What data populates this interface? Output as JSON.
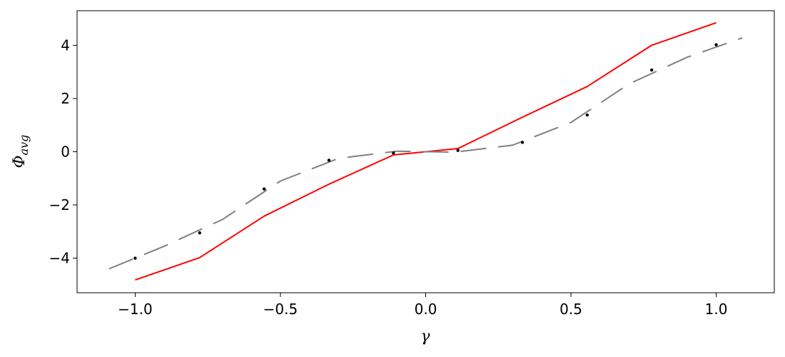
{
  "chart_data": {
    "type": "line",
    "xlabel": "γ",
    "ylabel_main": "Φ",
    "ylabel_sub": "avg",
    "xlim": [
      -1.2,
      1.2
    ],
    "ylim": [
      -5.3,
      5.3
    ],
    "xticks": [
      -1.0,
      -0.5,
      0.0,
      0.5,
      1.0
    ],
    "xtick_labels": [
      "−1.0",
      "−0.5",
      "0.0",
      "0.5",
      "1.0"
    ],
    "yticks": [
      -4,
      -2,
      0,
      2,
      4
    ],
    "ytick_labels": [
      "−4",
      "−2",
      "0",
      "2",
      "4"
    ],
    "grid": false,
    "legend": "none",
    "series": [
      {
        "style": "solid",
        "color": "#ff0000",
        "x": [
          -1.0,
          -0.778,
          -0.556,
          -0.333,
          -0.111,
          0.111,
          0.333,
          0.556,
          0.778,
          1.0
        ],
        "y": [
          -4.82,
          -3.98,
          -2.42,
          -1.22,
          -0.12,
          0.12,
          1.3,
          2.45,
          4.0,
          4.85
        ]
      },
      {
        "style": "dashed",
        "color": "#808080",
        "x": [
          -1.09,
          -0.9,
          -0.7,
          -0.5,
          -0.3,
          -0.1,
          0.1,
          0.3,
          0.5,
          0.7,
          0.9,
          1.09
        ],
        "y": [
          -4.4,
          -3.55,
          -2.55,
          -1.1,
          -0.25,
          0.02,
          -0.02,
          0.25,
          1.1,
          2.55,
          3.55,
          4.28
        ]
      },
      {
        "style": "points",
        "color": "#000000",
        "x": [
          -1.0,
          -0.778,
          -0.556,
          -0.333,
          -0.111,
          0.111,
          0.333,
          0.556,
          0.778,
          1.0
        ],
        "y": [
          -4.0,
          -3.05,
          -1.4,
          -0.32,
          -0.05,
          0.05,
          0.35,
          1.38,
          3.07,
          4.02
        ]
      }
    ]
  }
}
